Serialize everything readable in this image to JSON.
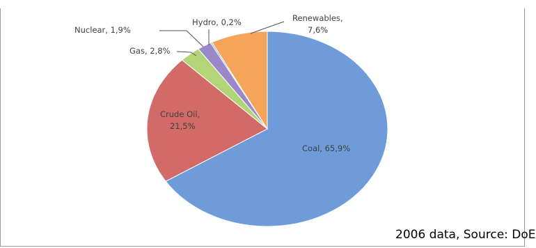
{
  "chart_data": {
    "type": "pie",
    "title": "",
    "slices": [
      {
        "label": "Coal",
        "value": 65.9,
        "display": "Coal, 65,9%",
        "color": "#6f9bd8"
      },
      {
        "label": "Crude Oil",
        "value": 21.5,
        "display": "Crude Oil, 21,5%",
        "color": "#d26b68"
      },
      {
        "label": "Gas",
        "value": 2.8,
        "display": "Gas, 2,8%",
        "color": "#b3d477"
      },
      {
        "label": "Nuclear",
        "value": 1.9,
        "display": "Nuclear, 1,9%",
        "color": "#9a88c8"
      },
      {
        "label": "Hydro",
        "value": 0.2,
        "display": "Hydro, 0,2%",
        "color": "#5bb8d0"
      },
      {
        "label": "Renewables",
        "value": 7.6,
        "display": "Renewables, 7,6%",
        "color": "#f6a45a"
      }
    ]
  },
  "labels": {
    "coal": "Coal, 65,9%",
    "crude_line1": "Crude Oil,",
    "crude_line2": "21,5%",
    "gas": "Gas, 2,8%",
    "nuclear": "Nuclear, 1,9%",
    "hydro": "Hydro, 0,2%",
    "renew_line1": "Renewables,",
    "renew_line2": "7,6%"
  },
  "source_text": "2006 data, Source: DoE"
}
